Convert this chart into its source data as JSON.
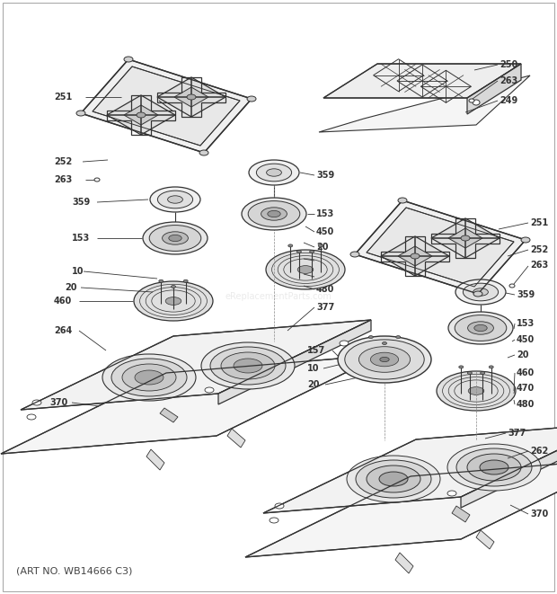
{
  "art_no": "(ART NO. WB14666 C3)",
  "bg_color": "#ffffff",
  "line_color": "#333333",
  "fig_width": 6.2,
  "fig_height": 6.61,
  "dpi": 100
}
